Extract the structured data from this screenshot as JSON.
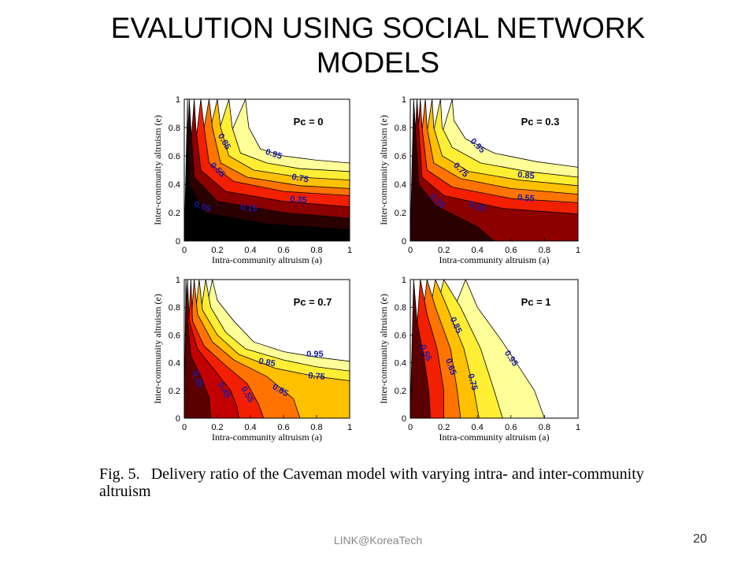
{
  "slide": {
    "title_line1": "EVALUTION USING SOCIAL NETWORK",
    "title_line2": "MODELS",
    "caption_label": "Fig. 5.",
    "caption_text": "Delivery ratio of the Caveman model with varying intra- and inter-community altruism",
    "footer": "LINK@KoreaTech",
    "page_number": "20"
  },
  "colors": {
    "levels": [
      "#000000",
      "#2b0000",
      "#5a0000",
      "#8c0000",
      "#c20000",
      "#f22000",
      "#ff7300",
      "#ffc000",
      "#ffee33",
      "#ffff99",
      "#ffffff"
    ],
    "contour_label": "#1a1aa8"
  },
  "chart_data": [
    {
      "type": "contour",
      "panel_label": "Pc = 0",
      "xlabel": "Intra-community altruism (a)",
      "ylabel": "Inter-community altruism (e)",
      "xlim": [
        0,
        1
      ],
      "ylim": [
        0,
        1
      ],
      "x_ticks": [
        "0",
        "0.2",
        "0.4",
        "0.6",
        "0.8",
        "1"
      ],
      "y_ticks": [
        "0",
        "0.2",
        "0.4",
        "0.6",
        "0.8",
        "1"
      ],
      "contours": [
        {
          "level": 0.95,
          "points": [
            [
              0.37,
              1
            ],
            [
              0.39,
              0.8
            ],
            [
              0.46,
              0.65
            ],
            [
              0.6,
              0.6
            ],
            [
              0.8,
              0.57
            ],
            [
              1,
              0.55
            ]
          ]
        },
        {
          "level": 0.85,
          "points": [
            [
              0.27,
              1
            ],
            [
              0.29,
              0.8
            ],
            [
              0.34,
              0.62
            ],
            [
              0.5,
              0.55
            ],
            [
              0.7,
              0.51
            ],
            [
              1,
              0.49
            ]
          ]
        },
        {
          "level": 0.75,
          "points": [
            [
              0.2,
              1
            ],
            [
              0.22,
              0.8
            ],
            [
              0.27,
              0.6
            ],
            [
              0.42,
              0.5
            ],
            [
              0.7,
              0.45
            ],
            [
              1,
              0.43
            ]
          ]
        },
        {
          "level": 0.65,
          "points": [
            [
              0.15,
              1
            ],
            [
              0.17,
              0.8
            ],
            [
              0.22,
              0.55
            ],
            [
              0.38,
              0.45
            ],
            [
              0.7,
              0.39
            ],
            [
              1,
              0.37
            ]
          ]
        },
        {
          "level": 0.55,
          "points": [
            [
              0.1,
              1
            ],
            [
              0.12,
              0.8
            ],
            [
              0.15,
              0.55
            ],
            [
              0.3,
              0.42
            ],
            [
              0.6,
              0.35
            ],
            [
              1,
              0.32
            ]
          ]
        },
        {
          "level": 0.35,
          "points": [
            [
              0.06,
              1
            ],
            [
              0.07,
              0.8
            ],
            [
              0.1,
              0.5
            ],
            [
              0.25,
              0.35
            ],
            [
              0.6,
              0.28
            ],
            [
              1,
              0.24
            ]
          ]
        },
        {
          "level": 0.15,
          "points": [
            [
              0.03,
              1
            ],
            [
              0.04,
              0.8
            ],
            [
              0.06,
              0.45
            ],
            [
              0.2,
              0.28
            ],
            [
              0.6,
              0.2
            ],
            [
              1,
              0.16
            ]
          ]
        },
        {
          "level": 0.05,
          "points": [
            [
              0.02,
              1
            ],
            [
              0.02,
              0.8
            ],
            [
              0.03,
              0.4
            ],
            [
              0.12,
              0.2
            ],
            [
              0.5,
              0.12
            ],
            [
              1,
              0.08
            ]
          ]
        }
      ],
      "labels": [
        {
          "text": "0.85",
          "x": 0.24,
          "y": 0.7,
          "angle": 60
        },
        {
          "text": "0.95",
          "x": 0.54,
          "y": 0.61,
          "angle": 18
        },
        {
          "text": "0.55",
          "x": 0.2,
          "y": 0.5,
          "angle": 45
        },
        {
          "text": "0.75",
          "x": 0.7,
          "y": 0.44,
          "angle": 10
        },
        {
          "text": "0.35",
          "x": 0.69,
          "y": 0.29,
          "angle": 5
        },
        {
          "text": "0.05",
          "x": 0.11,
          "y": 0.24,
          "angle": 20
        },
        {
          "text": "0.15",
          "x": 0.39,
          "y": 0.23,
          "angle": 5
        }
      ]
    },
    {
      "type": "contour",
      "panel_label": "Pc = 0.3",
      "xlabel": "Intra-community altruism (a)",
      "ylabel": "Inter-community altruism (e)",
      "xlim": [
        0,
        1
      ],
      "ylim": [
        0,
        1
      ],
      "x_ticks": [
        "0",
        "0.2",
        "0.4",
        "0.6",
        "0.8",
        "1"
      ],
      "y_ticks": [
        "0",
        "0.2",
        "0.4",
        "0.6",
        "0.8",
        "1"
      ],
      "contours": [
        {
          "level": 0.95,
          "points": [
            [
              0.25,
              1
            ],
            [
              0.26,
              0.85
            ],
            [
              0.33,
              0.72
            ],
            [
              0.5,
              0.62
            ],
            [
              0.75,
              0.56
            ],
            [
              1,
              0.52
            ]
          ]
        },
        {
          "level": 0.85,
          "points": [
            [
              0.18,
              1
            ],
            [
              0.19,
              0.8
            ],
            [
              0.25,
              0.66
            ],
            [
              0.42,
              0.55
            ],
            [
              0.7,
              0.49
            ],
            [
              1,
              0.45
            ]
          ]
        },
        {
          "level": 0.75,
          "points": [
            [
              0.13,
              1
            ],
            [
              0.14,
              0.8
            ],
            [
              0.19,
              0.6
            ],
            [
              0.35,
              0.49
            ],
            [
              0.65,
              0.43
            ],
            [
              1,
              0.39
            ]
          ]
        },
        {
          "level": 0.65,
          "points": [
            [
              0.09,
              1
            ],
            [
              0.1,
              0.8
            ],
            [
              0.14,
              0.55
            ],
            [
              0.3,
              0.44
            ],
            [
              0.6,
              0.37
            ],
            [
              1,
              0.33
            ]
          ]
        },
        {
          "level": 0.55,
          "points": [
            [
              0.06,
              1
            ],
            [
              0.07,
              0.8
            ],
            [
              0.1,
              0.5
            ],
            [
              0.25,
              0.38
            ],
            [
              0.6,
              0.3
            ],
            [
              1,
              0.27
            ]
          ]
        },
        {
          "level": 0.35,
          "points": [
            [
              0.04,
              1
            ],
            [
              0.05,
              0.8
            ],
            [
              0.07,
              0.45
            ],
            [
              0.2,
              0.32
            ],
            [
              0.55,
              0.23
            ],
            [
              1,
              0.19
            ]
          ]
        },
        {
          "level": 0.25,
          "points": [
            [
              0.02,
              1
            ],
            [
              0.03,
              0.8
            ],
            [
              0.05,
              0.4
            ],
            [
              0.15,
              0.25
            ],
            [
              0.4,
              0.1
            ],
            [
              0.5,
              0
            ]
          ]
        }
      ],
      "labels": [
        {
          "text": "0.95",
          "x": 0.4,
          "y": 0.67,
          "angle": 45
        },
        {
          "text": "0.75",
          "x": 0.3,
          "y": 0.5,
          "angle": 45
        },
        {
          "text": "0.85",
          "x": 0.69,
          "y": 0.46,
          "angle": 5
        },
        {
          "text": "0.55",
          "x": 0.69,
          "y": 0.3,
          "angle": 5
        },
        {
          "text": "0.25",
          "x": 0.16,
          "y": 0.28,
          "angle": 45
        },
        {
          "text": "0.35",
          "x": 0.4,
          "y": 0.24,
          "angle": 20
        }
      ]
    },
    {
      "type": "contour",
      "panel_label": "Pc = 0.7",
      "xlabel": "Intra-community altruism (a)",
      "ylabel": "Inter-community altruism (e)",
      "xlim": [
        0,
        1
      ],
      "ylim": [
        0,
        1
      ],
      "x_ticks": [
        "0",
        "0.2",
        "0.4",
        "0.6",
        "0.8",
        "1"
      ],
      "y_ticks": [
        "0",
        "0.2",
        "0.4",
        "0.6",
        "0.8",
        "1"
      ],
      "contours": [
        {
          "level": 0.95,
          "points": [
            [
              0.17,
              1
            ],
            [
              0.2,
              0.85
            ],
            [
              0.3,
              0.7
            ],
            [
              0.42,
              0.55
            ],
            [
              0.6,
              0.48
            ],
            [
              0.8,
              0.44
            ],
            [
              1,
              0.41
            ]
          ]
        },
        {
          "level": 0.85,
          "points": [
            [
              0.13,
              1
            ],
            [
              0.16,
              0.8
            ],
            [
              0.25,
              0.62
            ],
            [
              0.37,
              0.5
            ],
            [
              0.6,
              0.42
            ],
            [
              0.8,
              0.37
            ],
            [
              1,
              0.34
            ]
          ]
        },
        {
          "level": 0.75,
          "points": [
            [
              0.09,
              1
            ],
            [
              0.11,
              0.78
            ],
            [
              0.2,
              0.6
            ],
            [
              0.33,
              0.46
            ],
            [
              0.55,
              0.36
            ],
            [
              0.8,
              0.3
            ],
            [
              1,
              0.27
            ]
          ]
        },
        {
          "level": 0.65,
          "points": [
            [
              0.06,
              1
            ],
            [
              0.08,
              0.75
            ],
            [
              0.17,
              0.55
            ],
            [
              0.3,
              0.42
            ],
            [
              0.5,
              0.3
            ],
            [
              0.66,
              0.14
            ],
            [
              0.7,
              0
            ]
          ]
        },
        {
          "level": 0.55,
          "points": [
            [
              0.04,
              1
            ],
            [
              0.05,
              0.7
            ],
            [
              0.12,
              0.52
            ],
            [
              0.25,
              0.38
            ],
            [
              0.38,
              0.25
            ],
            [
              0.45,
              0.1
            ],
            [
              0.48,
              0
            ]
          ]
        },
        {
          "level": 0.45,
          "points": [
            [
              0.02,
              1
            ],
            [
              0.03,
              0.7
            ],
            [
              0.08,
              0.5
            ],
            [
              0.18,
              0.35
            ],
            [
              0.28,
              0.2
            ],
            [
              0.32,
              0.08
            ],
            [
              0.33,
              0
            ]
          ]
        },
        {
          "level": 0.35,
          "points": [
            [
              0.01,
              1
            ],
            [
              0.02,
              0.7
            ],
            [
              0.04,
              0.45
            ],
            [
              0.1,
              0.3
            ],
            [
              0.15,
              0.15
            ],
            [
              0.16,
              0
            ]
          ]
        }
      ],
      "labels": [
        {
          "text": "0.95",
          "x": 0.79,
          "y": 0.46,
          "angle": 0
        },
        {
          "text": "0.85",
          "x": 0.5,
          "y": 0.4,
          "angle": 10
        },
        {
          "text": "0.75",
          "x": 0.8,
          "y": 0.3,
          "angle": 5
        },
        {
          "text": "0.65",
          "x": 0.58,
          "y": 0.2,
          "angle": 30
        },
        {
          "text": "0.55",
          "x": 0.38,
          "y": 0.17,
          "angle": 60
        },
        {
          "text": "0.45",
          "x": 0.24,
          "y": 0.2,
          "angle": 60
        },
        {
          "text": "0.35",
          "x": 0.08,
          "y": 0.28,
          "angle": 70
        }
      ]
    },
    {
      "type": "contour",
      "panel_label": "Pc = 1",
      "xlabel": "Intra-community altruism (a)",
      "ylabel": "Inter-community altruism (e)",
      "xlim": [
        0,
        1
      ],
      "ylim": [
        0,
        1
      ],
      "x_ticks": [
        "0",
        "0.2",
        "0.4",
        "0.6",
        "0.8",
        "1"
      ],
      "y_ticks": [
        "0",
        "0.2",
        "0.4",
        "0.6",
        "0.8",
        "1"
      ],
      "contours": [
        {
          "level": 0.95,
          "points": [
            [
              0.33,
              1
            ],
            [
              0.4,
              0.8
            ],
            [
              0.55,
              0.55
            ],
            [
              0.74,
              0.2
            ],
            [
              0.8,
              0
            ]
          ]
        },
        {
          "level": 0.85,
          "points": [
            [
              0.2,
              1
            ],
            [
              0.3,
              0.8
            ],
            [
              0.42,
              0.5
            ],
            [
              0.5,
              0.2
            ],
            [
              0.55,
              0
            ]
          ]
        },
        {
          "level": 0.75,
          "points": [
            [
              0.15,
              1
            ],
            [
              0.22,
              0.8
            ],
            [
              0.32,
              0.5
            ],
            [
              0.38,
              0.2
            ],
            [
              0.41,
              0
            ]
          ]
        },
        {
          "level": 0.65,
          "points": [
            [
              0.1,
              1
            ],
            [
              0.15,
              0.8
            ],
            [
              0.24,
              0.5
            ],
            [
              0.28,
              0.2
            ],
            [
              0.3,
              0
            ]
          ]
        },
        {
          "level": 0.55,
          "points": [
            [
              0.06,
              1
            ],
            [
              0.1,
              0.75
            ],
            [
              0.16,
              0.5
            ],
            [
              0.2,
              0.2
            ],
            [
              0.2,
              0
            ]
          ]
        },
        {
          "level": 0.35,
          "points": [
            [
              0.02,
              1
            ],
            [
              0.04,
              0.7
            ],
            [
              0.08,
              0.45
            ],
            [
              0.11,
              0.2
            ],
            [
              0.12,
              0
            ]
          ]
        }
      ],
      "labels": [
        {
          "text": "0.85",
          "x": 0.27,
          "y": 0.67,
          "angle": 65
        },
        {
          "text": "0.95",
          "x": 0.6,
          "y": 0.43,
          "angle": 55
        },
        {
          "text": "0.55",
          "x": 0.09,
          "y": 0.47,
          "angle": 65
        },
        {
          "text": "0.65",
          "x": 0.24,
          "y": 0.37,
          "angle": 70
        },
        {
          "text": "0.75",
          "x": 0.37,
          "y": 0.26,
          "angle": 75
        }
      ]
    }
  ]
}
